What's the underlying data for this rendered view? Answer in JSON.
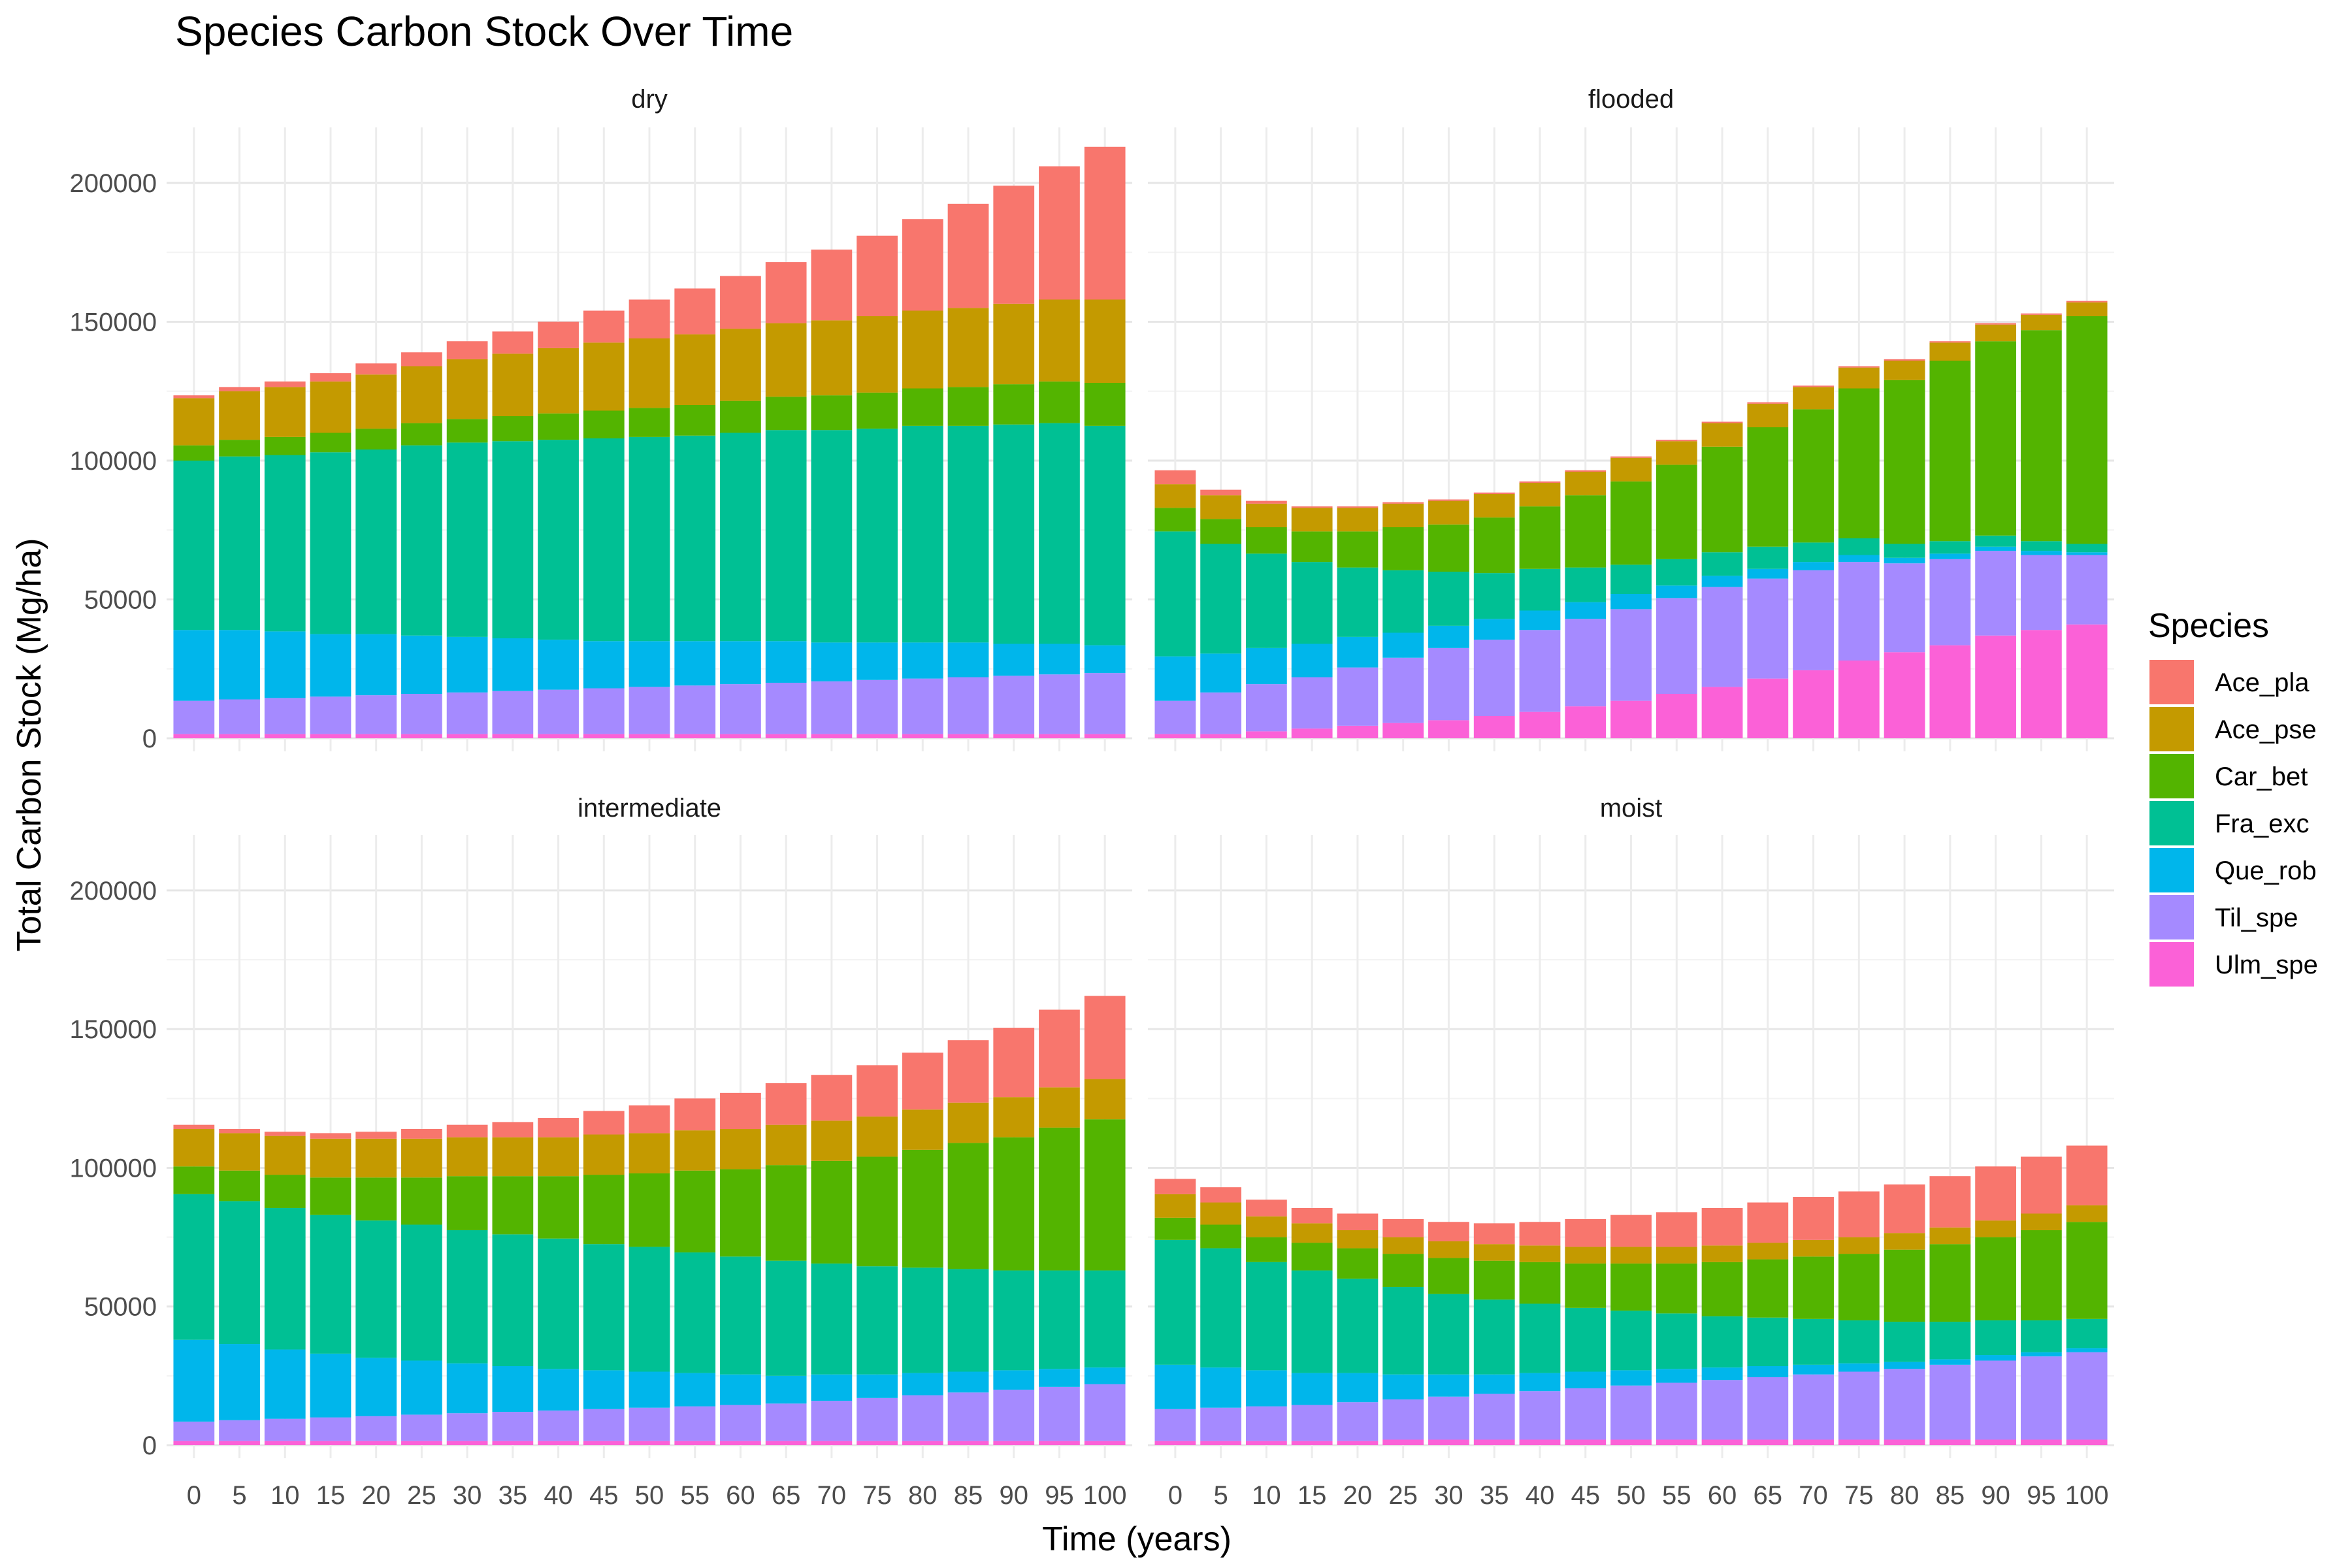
{
  "chart_data": {
    "type": "bar",
    "stacked": true,
    "faceted": true,
    "title": "Species Carbon Stock Over Time",
    "xlabel": "Time (years)",
    "ylabel": "Total Carbon Stock (Mg/ha)",
    "ylim": [
      0,
      220000
    ],
    "yticks": [
      0,
      50000,
      100000,
      150000,
      200000
    ],
    "ytick_labels": [
      "0",
      "50000",
      "100000",
      "150000",
      "200000"
    ],
    "x": [
      0,
      5,
      10,
      15,
      20,
      25,
      30,
      35,
      40,
      45,
      50,
      55,
      60,
      65,
      70,
      75,
      80,
      85,
      90,
      95,
      100
    ],
    "x_labels": [
      "0",
      "5",
      "10",
      "15",
      "20",
      "25",
      "30",
      "35",
      "40",
      "45",
      "50",
      "55",
      "60",
      "65",
      "70",
      "75",
      "80",
      "85",
      "90",
      "95",
      "100"
    ],
    "grid": true,
    "legend": {
      "title": "Species",
      "position": "right",
      "entries": [
        "Ace_pla",
        "Ace_pse",
        "Car_bet",
        "Fra_exc",
        "Que_rob",
        "Til_spe",
        "Ulm_spe"
      ],
      "colors": [
        "#F8766D",
        "#C49A00",
        "#53B400",
        "#00C094",
        "#00B6EB",
        "#A58AFF",
        "#FB61D7"
      ]
    },
    "stack_order_bottom_to_top": [
      "Ulm_spe",
      "Til_spe",
      "Que_rob",
      "Fra_exc",
      "Car_bet",
      "Ace_pse",
      "Ace_pla"
    ],
    "panels": [
      {
        "name": "dry",
        "series": [
          {
            "name": "Ace_pla",
            "values": [
              1000,
              1500,
              2000,
              3000,
              4000,
              5000,
              6500,
              8000,
              9500,
              11500,
              14000,
              16500,
              19000,
              22000,
              25500,
              29000,
              33000,
              37500,
              42500,
              48000,
              55000
            ]
          },
          {
            "name": "Ace_pse",
            "values": [
              17000,
              17500,
              18000,
              18500,
              19500,
              20500,
              21500,
              22500,
              23500,
              24500,
              25000,
              25500,
              26000,
              26500,
              27000,
              27500,
              28000,
              28500,
              29000,
              29500,
              30000
            ]
          },
          {
            "name": "Car_bet",
            "values": [
              5500,
              6000,
              6500,
              7000,
              7500,
              8000,
              8500,
              9000,
              9500,
              10000,
              10500,
              11000,
              11500,
              12000,
              12500,
              13000,
              13500,
              14000,
              14500,
              15000,
              15500
            ]
          },
          {
            "name": "Fra_exc",
            "values": [
              61000,
              62500,
              63500,
              65500,
              66500,
              68500,
              70000,
              71000,
              72000,
              73000,
              73500,
              74000,
              75000,
              76000,
              76500,
              77000,
              78000,
              78000,
              79000,
              79500,
              79000
            ]
          },
          {
            "name": "Que_rob",
            "values": [
              25500,
              25000,
              24000,
              22500,
              22000,
              21000,
              20000,
              19000,
              18000,
              17000,
              16500,
              16000,
              15500,
              15000,
              14000,
              13500,
              13000,
              12500,
              11500,
              11000,
              10000
            ]
          },
          {
            "name": "Til_spe",
            "values": [
              12000,
              12500,
              13000,
              13500,
              14000,
              14500,
              15000,
              15500,
              16000,
              16500,
              17000,
              17500,
              18000,
              18500,
              19000,
              19500,
              20000,
              20500,
              21000,
              21500,
              22000
            ]
          },
          {
            "name": "Ulm_spe",
            "values": [
              1500,
              1500,
              1500,
              1500,
              1500,
              1500,
              1500,
              1500,
              1500,
              1500,
              1500,
              1500,
              1500,
              1500,
              1500,
              1500,
              1500,
              1500,
              1500,
              1500,
              1500
            ]
          }
        ]
      },
      {
        "name": "flooded",
        "series": [
          {
            "name": "Ace_pla",
            "values": [
              5000,
              2000,
              1000,
              500,
              500,
              500,
              500,
              500,
              500,
              500,
              500,
              500,
              500,
              500,
              500,
              500,
              500,
              500,
              500,
              500,
              500
            ]
          },
          {
            "name": "Ace_pse",
            "values": [
              8500,
              8500,
              8500,
              8500,
              8500,
              8500,
              8500,
              8500,
              8500,
              8500,
              8500,
              8500,
              8500,
              8500,
              8000,
              7500,
              7000,
              6500,
              6000,
              5500,
              5000
            ]
          },
          {
            "name": "Car_bet",
            "values": [
              8500,
              9000,
              9500,
              11000,
              13000,
              15500,
              17000,
              20000,
              22500,
              26000,
              30000,
              34000,
              38000,
              43000,
              48000,
              54000,
              59000,
              65000,
              70000,
              76000,
              82000
            ]
          },
          {
            "name": "Fra_exc",
            "values": [
              45000,
              39500,
              34000,
              29500,
              25000,
              22500,
              19500,
              16500,
              15000,
              12500,
              10500,
              9500,
              8500,
              8000,
              7000,
              6000,
              5000,
              4500,
              4000,
              3500,
              3000
            ]
          },
          {
            "name": "Que_rob",
            "values": [
              16000,
              14000,
              13000,
              12000,
              11000,
              9000,
              8000,
              7500,
              7000,
              6000,
              5500,
              4500,
              4000,
              3500,
              3000,
              2500,
              2000,
              2000,
              1500,
              1500,
              1000
            ]
          },
          {
            "name": "Til_spe",
            "values": [
              12000,
              15000,
              17000,
              18500,
              21000,
              23500,
              26000,
              27500,
              29500,
              31500,
              33000,
              34500,
              36000,
              36000,
              36000,
              35500,
              32000,
              31000,
              30500,
              27000,
              25000
            ]
          },
          {
            "name": "Ulm_spe",
            "values": [
              1500,
              1500,
              2500,
              3500,
              4500,
              5500,
              6500,
              8000,
              9500,
              11500,
              13500,
              16000,
              18500,
              21500,
              24500,
              28000,
              31000,
              33500,
              37000,
              39000,
              41000
            ]
          }
        ]
      },
      {
        "name": "intermediate",
        "series": [
          {
            "name": "Ace_pla",
            "values": [
              1500,
              1500,
              1500,
              2000,
              2500,
              3500,
              4500,
              5500,
              7000,
              8500,
              10000,
              11500,
              13000,
              15000,
              16500,
              18500,
              20500,
              22500,
              25000,
              28000,
              30000
            ]
          },
          {
            "name": "Ace_pse",
            "values": [
              13500,
              13500,
              14000,
              14000,
              14000,
              14000,
              14000,
              14000,
              14000,
              14500,
              14500,
              14500,
              14500,
              14500,
              14500,
              14500,
              14500,
              14500,
              14500,
              14500,
              14500
            ]
          },
          {
            "name": "Car_bet",
            "values": [
              10000,
              11000,
              12000,
              13500,
              15500,
              17000,
              19500,
              21000,
              22500,
              25000,
              26500,
              29500,
              31500,
              34500,
              37000,
              39500,
              42500,
              45500,
              48000,
              51500,
              54500
            ]
          },
          {
            "name": "Fra_exc",
            "values": [
              52500,
              51500,
              51000,
              50000,
              49500,
              49000,
              48000,
              47500,
              47000,
              45500,
              45000,
              43500,
              42500,
              41500,
              40000,
              39000,
              38000,
              37000,
              36000,
              35500,
              35000
            ]
          },
          {
            "name": "Que_rob",
            "values": [
              29500,
              27500,
              25000,
              23000,
              21000,
              19500,
              18000,
              16500,
              15000,
              14000,
              13000,
              12000,
              11000,
              10000,
              9500,
              8500,
              8000,
              7500,
              7000,
              6500,
              6000
            ]
          },
          {
            "name": "Til_spe",
            "values": [
              7000,
              7500,
              8000,
              8500,
              9000,
              9500,
              10000,
              10500,
              11000,
              11500,
              12000,
              12500,
              13000,
              13500,
              14500,
              15500,
              16500,
              17500,
              18500,
              19500,
              20500
            ]
          },
          {
            "name": "Ulm_spe",
            "values": [
              1500,
              1500,
              1500,
              1500,
              1500,
              1500,
              1500,
              1500,
              1500,
              1500,
              1500,
              1500,
              1500,
              1500,
              1500,
              1500,
              1500,
              1500,
              1500,
              1500,
              1500
            ]
          }
        ]
      },
      {
        "name": "moist",
        "series": [
          {
            "name": "Ace_pla",
            "values": [
              5500,
              5500,
              6000,
              5500,
              6000,
              6500,
              7000,
              7500,
              8500,
              10000,
              11500,
              12500,
              13500,
              14500,
              15500,
              16500,
              17500,
              18500,
              19500,
              20500,
              21500
            ]
          },
          {
            "name": "Ace_pse",
            "values": [
              8500,
              8000,
              7500,
              7000,
              6500,
              6000,
              6000,
              6000,
              6000,
              6000,
              6000,
              6000,
              6000,
              6000,
              6000,
              6000,
              6000,
              6000,
              6000,
              6000,
              6000
            ]
          },
          {
            "name": "Car_bet",
            "values": [
              8000,
              8500,
              9000,
              10000,
              11000,
              12000,
              13000,
              14000,
              15000,
              16000,
              17000,
              18000,
              19500,
              21000,
              22500,
              24000,
              26000,
              28000,
              30000,
              32500,
              35000
            ]
          },
          {
            "name": "Fra_exc",
            "values": [
              45000,
              43000,
              39000,
              37000,
              34000,
              31500,
              29000,
              27000,
              25000,
              23000,
              21500,
              20000,
              18500,
              17500,
              16500,
              15500,
              14500,
              13500,
              12500,
              11500,
              10500
            ]
          },
          {
            "name": "Que_rob",
            "values": [
              16000,
              14500,
              13000,
              11500,
              10500,
              9000,
              8000,
              7000,
              6500,
              6000,
              5500,
              5000,
              4500,
              4000,
              3500,
              3000,
              2500,
              2000,
              2000,
              1500,
              1500
            ]
          },
          {
            "name": "Til_spe",
            "values": [
              11500,
              12000,
              12500,
              13000,
              14000,
              14500,
              15500,
              16500,
              17500,
              18500,
              19500,
              20500,
              21500,
              22500,
              23500,
              24500,
              25500,
              27000,
              28500,
              30000,
              31500
            ]
          },
          {
            "name": "Ulm_spe",
            "values": [
              1500,
              1500,
              1500,
              1500,
              1500,
              2000,
              2000,
              2000,
              2000,
              2000,
              2000,
              2000,
              2000,
              2000,
              2000,
              2000,
              2000,
              2000,
              2000,
              2000,
              2000
            ]
          }
        ]
      }
    ]
  }
}
